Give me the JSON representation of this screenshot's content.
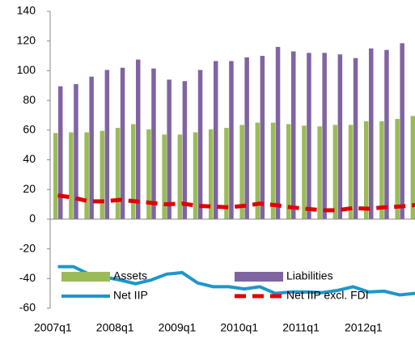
{
  "chart_data": {
    "type": "bar_line",
    "categories": [
      "2007q1",
      null,
      null,
      null,
      "2008q1",
      null,
      null,
      null,
      "2009q1",
      null,
      null,
      null,
      "2010q1",
      null,
      null,
      null,
      "2011q1",
      null,
      null,
      null,
      "2012q1",
      null,
      null,
      null
    ],
    "series": [
      {
        "name": "Assets",
        "kind": "bar",
        "color": "#9bbb59",
        "values": [
          58,
          58.5,
          58.5,
          59.5,
          61.5,
          64,
          60.5,
          57,
          57,
          58.5,
          60.5,
          61.5,
          63.5,
          65,
          65,
          64,
          63,
          62.5,
          63.5,
          63.5,
          66,
          66,
          67.5,
          69.5
        ]
      },
      {
        "name": "Liabilities",
        "kind": "bar",
        "color": "#8064a2",
        "values": [
          89.5,
          91,
          96,
          100.5,
          102,
          107.5,
          101.5,
          94,
          93,
          100.5,
          106.5,
          106.5,
          109,
          110,
          116,
          113,
          112,
          112,
          111,
          108.5,
          115,
          114,
          118.5,
          119
        ]
      },
      {
        "name": "Net IIP",
        "kind": "line",
        "color": "#1f96c8",
        "values": [
          -32,
          -32,
          -37,
          -39,
          -41,
          -43.5,
          -41,
          -37,
          -36,
          -43,
          -45.5,
          -45.5,
          -47,
          -45.5,
          -50,
          -49,
          -49,
          -49.5,
          -48,
          -45.5,
          -49,
          -48.5,
          -51,
          -50
        ]
      },
      {
        "name": "Net IIP excl. FDI",
        "kind": "dashed",
        "color": "#e00000",
        "values": [
          16,
          14.5,
          12,
          12,
          13,
          12,
          11,
          10,
          10.5,
          9,
          8.5,
          8,
          9,
          10.5,
          9.5,
          8,
          7,
          6,
          6,
          7.5,
          7,
          8,
          8.5,
          9.5
        ]
      }
    ],
    "ylim": [
      -60,
      140
    ],
    "yticks": [
      -60,
      -40,
      -20,
      0,
      20,
      40,
      60,
      80,
      100,
      120,
      140
    ]
  }
}
